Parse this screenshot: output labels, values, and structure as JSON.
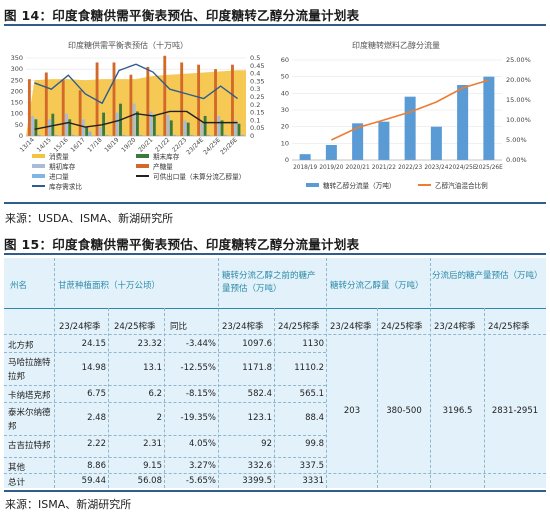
{
  "fig14": {
    "title": "图 14：印度食糖供需平衡表预估、印度糖转乙醇分流量计划表",
    "source": "来源：USDA、ISMA、新湖研究所"
  },
  "fig15": {
    "title": "图 15：印度食糖供需平衡表预估、印度糖转乙醇分流量计划表",
    "source": "来源：ISMA、新湖研究所"
  },
  "chart_data": [
    {
      "type": "bar",
      "title": "印度糖供需平衡表预估（十万吨）",
      "categories": [
        "13/14",
        "14/15",
        "15/16",
        "16/17",
        "17/18",
        "18/19",
        "19/20",
        "20/21",
        "21/22",
        "22/23",
        "23/24E",
        "24/25E",
        "25/26E"
      ],
      "ylim_left": [
        0,
        350
      ],
      "yticks_left": [
        "0",
        "50",
        "100",
        "150",
        "200",
        "250",
        "300",
        "350"
      ],
      "ylim_right": [
        0,
        0.5
      ],
      "yticks_right": [
        "0",
        "0.05",
        "0.1",
        "0.15",
        "0.2",
        "0.25",
        "0.3",
        "0.35",
        "0.4",
        "0.45",
        "0.5"
      ],
      "series": [
        {
          "name": "消费量",
          "color": "#f5c342",
          "kind": "area",
          "values": [
            250,
            255,
            255,
            250,
            255,
            255,
            255,
            270,
            275,
            280,
            285,
            290,
            295
          ]
        },
        {
          "name": "产糖量",
          "color": "#d2692a",
          "kind": "bar",
          "values": [
            255,
            285,
            250,
            205,
            330,
            330,
            275,
            310,
            360,
            330,
            320,
            300,
            320
          ]
        },
        {
          "name": "期初库存",
          "color": "#a8bcd8",
          "kind": "bar",
          "values": [
            90,
            75,
            100,
            75,
            40,
            105,
            145,
            110,
            95,
            70,
            60,
            90,
            70
          ]
        },
        {
          "name": "期末库存",
          "color": "#3a7a3a",
          "kind": "bar",
          "values": [
            75,
            100,
            75,
            40,
            105,
            145,
            110,
            95,
            70,
            60,
            90,
            70,
            55
          ]
        },
        {
          "name": "进口量",
          "color": "#7fb6e6",
          "kind": "bar",
          "values": [
            5,
            5,
            5,
            20,
            5,
            5,
            5,
            5,
            5,
            5,
            5,
            5,
            5
          ]
        },
        {
          "name": "可供出口量（未算分流乙醇量）",
          "color": "#222222",
          "kind": "line",
          "values": [
            30,
            45,
            60,
            40,
            50,
            70,
            100,
            90,
            110,
            110,
            60,
            60,
            60
          ]
        },
        {
          "name": "库存需求比",
          "color": "#2f5d8e",
          "kind": "line-right",
          "values": [
            0.34,
            0.3,
            0.39,
            0.27,
            0.21,
            0.42,
            0.46,
            0.41,
            0.3,
            0.27,
            0.24,
            0.32,
            0.24
          ]
        }
      ]
    },
    {
      "type": "bar",
      "title": "印度糖转燃料乙醇分流量",
      "categories": [
        "2018/19",
        "2019/20",
        "2020/21",
        "2021/22",
        "2022/23",
        "2023/24",
        "2024/25E",
        "2025/26E"
      ],
      "ylim_left": [
        0,
        60
      ],
      "yticks_left": [
        "0",
        "10",
        "20",
        "30",
        "40",
        "50",
        "60"
      ],
      "ylim_right": [
        0,
        25
      ],
      "yticks_right": [
        "0.00%",
        "5.00%",
        "10.00%",
        "15.00%",
        "20.00%",
        "25.00%"
      ],
      "series": [
        {
          "name": "糖转乙醇分流量（万吨）",
          "color": "#5b9bd5",
          "kind": "bar",
          "values": [
            3.5,
            9,
            22,
            23,
            38,
            20,
            45,
            50
          ]
        },
        {
          "name": "乙醇汽油混合比例",
          "color": "#ed7d31",
          "kind": "line-right",
          "values": [
            null,
            5.0,
            8.1,
            10.0,
            12.0,
            14.5,
            18.0,
            20.0
          ]
        }
      ]
    }
  ],
  "table": {
    "headers": {
      "state": "州名",
      "area": "甘蔗种植面积（十万公顷）",
      "pre_div": "糖转分流乙醇之前的糖产量预估（万吨）",
      "diversion": "糖转分流乙醇量（万吨）",
      "post_div": "分流后的糖产量预估（万吨）"
    },
    "subheaders": {
      "s1": "23/24榨季",
      "s2": "24/25榨季",
      "s3": "同比",
      "s4": "23/24榨季",
      "s5": "24/25榨季",
      "s6": "23/24榨季",
      "s7": "24/25榨季",
      "s8": "23/24榨季",
      "s9": "24/25榨季"
    },
    "rows": [
      {
        "state": "北方邦",
        "a23": "24.15",
        "a24": "23.32",
        "yoy": "-3.44%",
        "p23": "1097.6",
        "p24": "1130"
      },
      {
        "state_l1": "马哈拉施特",
        "state_l2": "拉邦",
        "a23": "14.98",
        "a24": "13.1",
        "yoy": "-12.55%",
        "p23": "1171.8",
        "p24": "1110.2"
      },
      {
        "state": "卡纳塔克邦",
        "a23": "6.75",
        "a24": "6.2",
        "yoy": "-8.15%",
        "p23": "582.4",
        "p24": "565.1"
      },
      {
        "state_l1": "泰米尔纳德",
        "state_l2": "邦",
        "a23": "2.48",
        "a24": "2",
        "yoy": "-19.35%",
        "p23": "123.1",
        "p24": "88.4"
      },
      {
        "state": "古吉拉特邦",
        "a23": "2.22",
        "a24": "2.31",
        "yoy": "4.05%",
        "p23": "92",
        "p24": "99.8"
      },
      {
        "state": "其他",
        "a23": "8.86",
        "a24": "9.15",
        "yoy": "3.27%",
        "p23": "332.6",
        "p24": "337.5"
      },
      {
        "state": "总计",
        "a23": "59.44",
        "a24": "56.08",
        "yoy": "-5.65%",
        "p23": "3399.5",
        "p24": "3331"
      }
    ],
    "merged": {
      "d23": "203",
      "d24": "380-500",
      "q23": "3196.5",
      "q24": "2831-2951"
    }
  }
}
